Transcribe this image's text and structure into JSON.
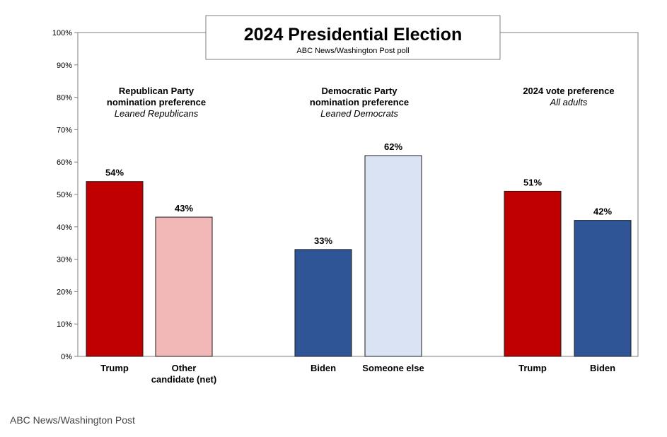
{
  "credit": "ABC News/Washington Post",
  "colors": {
    "republican": "#c00000",
    "republican_light": "#f2b8b8",
    "democrat": "#2f5597",
    "democrat_light": "#dae3f3",
    "axis": "#808080",
    "border": "#7f7f7f",
    "text": "#000000"
  },
  "chart_data": {
    "type": "bar",
    "title": "2024 Presidential Election",
    "subtitle": "ABC News/Washington Post poll",
    "ylim": [
      0,
      100
    ],
    "yticks": [
      "100%",
      "90%",
      "80%",
      "70%",
      "60%",
      "50%",
      "40%",
      "30%",
      "20%",
      "10%",
      "0%"
    ],
    "grid": false,
    "groups": [
      {
        "heading": [
          "Republican Party",
          "nomination preference"
        ],
        "subheading": "Leaned Republicans",
        "bars": [
          {
            "label": [
              "Trump"
            ],
            "value": 54,
            "value_label": "54%",
            "color": "#c00000"
          },
          {
            "label": [
              "Other",
              "candidate (net)"
            ],
            "value": 43,
            "value_label": "43%",
            "color": "#f2b8b8"
          }
        ]
      },
      {
        "heading": [
          "Democratic Party",
          "nomination preference"
        ],
        "subheading": "Leaned Democrats",
        "bars": [
          {
            "label": [
              "Biden"
            ],
            "value": 33,
            "value_label": "33%",
            "color": "#2f5597"
          },
          {
            "label": [
              "Someone else"
            ],
            "value": 62,
            "value_label": "62%",
            "color": "#dae3f3"
          }
        ]
      },
      {
        "heading": [
          "2024 vote preference"
        ],
        "subheading": "All adults",
        "bars": [
          {
            "label": [
              "Trump"
            ],
            "value": 51,
            "value_label": "51%",
            "color": "#c00000"
          },
          {
            "label": [
              "Biden"
            ],
            "value": 42,
            "value_label": "42%",
            "color": "#2f5597"
          }
        ]
      }
    ]
  }
}
